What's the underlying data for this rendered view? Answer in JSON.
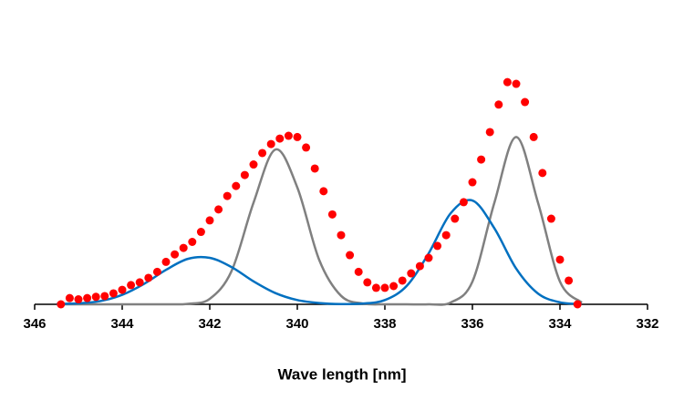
{
  "chart_data": {
    "type": "scatter",
    "x_label": "Wave length [nm]",
    "xlim": [
      346,
      332
    ],
    "xticks": [
      346,
      344,
      342,
      340,
      338,
      336,
      334,
      332
    ],
    "ylim": [
      0,
      100
    ],
    "series": [
      {
        "style": "markers",
        "color": "#ff0000",
        "x": [
          345.4,
          345.2,
          345.0,
          344.8,
          344.6,
          344.4,
          344.2,
          344.0,
          343.8,
          343.6,
          343.4,
          343.2,
          343.0,
          342.8,
          342.6,
          342.4,
          342.2,
          342.0,
          341.8,
          341.6,
          341.4,
          341.2,
          341.0,
          340.8,
          340.6,
          340.4,
          340.2,
          340.0,
          339.8,
          339.6,
          339.4,
          339.2,
          339.0,
          338.8,
          338.6,
          338.4,
          338.2,
          338.0,
          337.8,
          337.6,
          337.4,
          337.2,
          337.0,
          336.8,
          336.6,
          336.4,
          336.2,
          336.0,
          335.8,
          335.6,
          335.4,
          335.2,
          335.0,
          334.8,
          334.6,
          334.4,
          334.2,
          334.0,
          333.8,
          333.6
        ],
        "values": [
          0,
          2.5,
          2,
          2.5,
          3,
          3.3,
          4.4,
          5.8,
          7.7,
          8.8,
          10.6,
          13,
          17,
          20,
          22.6,
          25,
          29,
          33.6,
          38,
          43.4,
          47.4,
          51.8,
          56,
          60.6,
          64.2,
          66.4,
          67.5,
          67,
          62.8,
          54.4,
          45.3,
          36,
          27.7,
          19.7,
          13,
          8.8,
          6.6,
          6.6,
          7.3,
          9.5,
          12.4,
          15.3,
          18.6,
          23.4,
          27.7,
          34.3,
          40.9,
          48.9,
          58,
          69,
          80,
          89,
          88.3,
          81,
          67,
          52.6,
          34.3,
          17.9,
          9.5,
          0
        ]
      },
      {
        "style": "line",
        "color": "#808080",
        "x": [
          345.5,
          345.0,
          344.5,
          344.0,
          343.5,
          343.0,
          342.5,
          342.0,
          341.5,
          341.0,
          340.5,
          340.0,
          339.5,
          339.0,
          338.5,
          338.0,
          337.5,
          337.0,
          336.5,
          336.0,
          335.5,
          335.0,
          334.5,
          334.0,
          333.5
        ],
        "values": [
          0,
          0,
          0,
          0,
          0,
          0,
          0.2,
          2.2,
          13.4,
          40.7,
          62,
          46.8,
          17.8,
          3.4,
          0.3,
          0,
          0,
          0,
          0.7,
          9.1,
          40.6,
          67,
          40.6,
          9.1,
          0.7
        ]
      },
      {
        "style": "line",
        "color": "#0070c0",
        "x": [
          345.5,
          345.0,
          344.5,
          344.0,
          343.5,
          343.0,
          342.5,
          342.0,
          341.5,
          341.0,
          340.5,
          340.0,
          339.5,
          339.0,
          338.5,
          338.0,
          337.5,
          337.0,
          336.5,
          336.0,
          335.5,
          335.0,
          334.5,
          334.0,
          333.5
        ],
        "values": [
          0.1,
          0.4,
          1.3,
          3.8,
          8.2,
          13.8,
          18.2,
          18.6,
          14.9,
          9.2,
          4.5,
          1.7,
          0.5,
          0.1,
          0.3,
          1.7,
          7.4,
          20.4,
          36.4,
          41.6,
          30.5,
          14.3,
          4.3,
          0.8,
          0.1
        ]
      }
    ]
  }
}
